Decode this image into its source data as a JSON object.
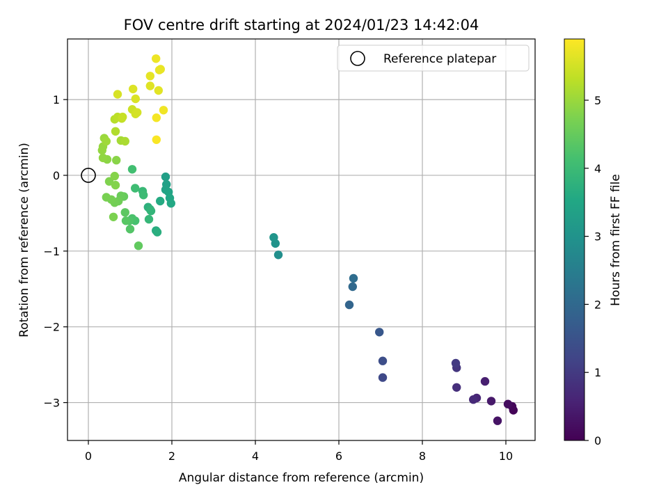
{
  "chart_data": {
    "type": "scatter",
    "title": "FOV centre drift starting at 2024/01/23 14:42:04",
    "xlabel": "Angular distance from reference (arcmin)",
    "ylabel": "Rotation from reference (arcmin)",
    "xlim": [
      -0.5,
      10.7
    ],
    "ylim": [
      -3.5,
      1.8
    ],
    "x_ticks": [
      0,
      2,
      4,
      6,
      8,
      10
    ],
    "y_ticks": [
      1,
      0,
      -1,
      -2,
      -3
    ],
    "x_tick_labels": [
      "0",
      "2",
      "4",
      "6",
      "8",
      "10"
    ],
    "y_tick_labels": [
      "1",
      "0",
      "−1",
      "−2",
      "−3"
    ],
    "grid": true,
    "legend": {
      "position": "top-right",
      "entries": [
        "Reference platepar"
      ]
    },
    "reference_point": {
      "x": 0,
      "y": 0,
      "marker": "open-circle"
    },
    "colorbar": {
      "label": "Hours from first FF file",
      "range": [
        0,
        5.9
      ],
      "ticks": [
        0,
        1,
        2,
        3,
        4,
        5
      ],
      "tick_labels": [
        "0",
        "1",
        "2",
        "3",
        "4",
        "5"
      ],
      "colormap": "viridis"
    },
    "series": [
      {
        "points": [
          {
            "x": 10.18,
            "y": -3.1,
            "t": 0.05
          },
          {
            "x": 10.15,
            "y": -3.05,
            "t": 0.1
          },
          {
            "x": 10.05,
            "y": -3.02,
            "t": 0.2
          },
          {
            "x": 9.8,
            "y": -3.24,
            "t": 0.3
          },
          {
            "x": 9.65,
            "y": -2.98,
            "t": 0.4
          },
          {
            "x": 9.5,
            "y": -2.72,
            "t": 0.5
          },
          {
            "x": 9.3,
            "y": -2.94,
            "t": 0.6
          },
          {
            "x": 9.22,
            "y": -2.96,
            "t": 0.7
          },
          {
            "x": 8.82,
            "y": -2.8,
            "t": 0.8
          },
          {
            "x": 8.82,
            "y": -2.54,
            "t": 0.9
          },
          {
            "x": 8.8,
            "y": -2.48,
            "t": 1.0
          },
          {
            "x": 7.05,
            "y": -2.67,
            "t": 1.3
          },
          {
            "x": 7.05,
            "y": -2.45,
            "t": 1.4
          },
          {
            "x": 6.97,
            "y": -2.07,
            "t": 1.6
          },
          {
            "x": 6.25,
            "y": -1.71,
            "t": 1.9
          },
          {
            "x": 6.33,
            "y": -1.47,
            "t": 2.0
          },
          {
            "x": 6.35,
            "y": -1.36,
            "t": 2.1
          },
          {
            "x": 4.55,
            "y": -1.05,
            "t": 2.9
          },
          {
            "x": 4.48,
            "y": -0.9,
            "t": 3.0
          },
          {
            "x": 4.44,
            "y": -0.82,
            "t": 3.05
          },
          {
            "x": 1.85,
            "y": -0.02,
            "t": 3.3
          },
          {
            "x": 1.87,
            "y": -0.12,
            "t": 3.35
          },
          {
            "x": 1.85,
            "y": -0.19,
            "t": 3.4
          },
          {
            "x": 1.92,
            "y": -0.22,
            "t": 3.45
          },
          {
            "x": 1.95,
            "y": -0.3,
            "t": 3.5
          },
          {
            "x": 1.98,
            "y": -0.37,
            "t": 3.55
          },
          {
            "x": 1.72,
            "y": -0.34,
            "t": 3.6
          },
          {
            "x": 1.62,
            "y": -0.73,
            "t": 3.65
          },
          {
            "x": 1.65,
            "y": -0.75,
            "t": 3.7
          },
          {
            "x": 1.43,
            "y": -0.42,
            "t": 3.75
          },
          {
            "x": 1.48,
            "y": -0.45,
            "t": 3.8
          },
          {
            "x": 1.5,
            "y": -0.47,
            "t": 3.85
          },
          {
            "x": 1.45,
            "y": -0.58,
            "t": 3.9
          },
          {
            "x": 1.3,
            "y": -0.21,
            "t": 3.95
          },
          {
            "x": 1.32,
            "y": -0.26,
            "t": 4.0
          },
          {
            "x": 1.12,
            "y": -0.17,
            "t": 4.05
          },
          {
            "x": 1.05,
            "y": 0.08,
            "t": 4.1
          },
          {
            "x": 1.12,
            "y": -0.6,
            "t": 4.15
          },
          {
            "x": 1.05,
            "y": -0.57,
            "t": 4.2
          },
          {
            "x": 0.98,
            "y": -0.6,
            "t": 4.25
          },
          {
            "x": 1.0,
            "y": -0.71,
            "t": 4.3
          },
          {
            "x": 0.9,
            "y": -0.6,
            "t": 4.35
          },
          {
            "x": 0.88,
            "y": -0.49,
            "t": 4.4
          },
          {
            "x": 1.2,
            "y": -0.93,
            "t": 4.45
          },
          {
            "x": 0.85,
            "y": -0.28,
            "t": 4.5
          },
          {
            "x": 0.78,
            "y": -0.27,
            "t": 4.55
          },
          {
            "x": 0.72,
            "y": -0.34,
            "t": 4.6
          },
          {
            "x": 0.63,
            "y": -0.36,
            "t": 4.63
          },
          {
            "x": 0.55,
            "y": -0.32,
            "t": 4.66
          },
          {
            "x": 0.43,
            "y": -0.29,
            "t": 4.7
          },
          {
            "x": 0.6,
            "y": -0.55,
            "t": 4.73
          },
          {
            "x": 0.5,
            "y": -0.08,
            "t": 4.76
          },
          {
            "x": 0.65,
            "y": -0.13,
            "t": 4.79
          },
          {
            "x": 0.63,
            "y": -0.01,
            "t": 4.82
          },
          {
            "x": 0.67,
            "y": 0.2,
            "t": 4.85
          },
          {
            "x": 0.45,
            "y": 0.21,
            "t": 4.88
          },
          {
            "x": 0.35,
            "y": 0.23,
            "t": 4.91
          },
          {
            "x": 0.33,
            "y": 0.33,
            "t": 4.94
          },
          {
            "x": 0.35,
            "y": 0.38,
            "t": 4.97
          },
          {
            "x": 0.38,
            "y": 0.49,
            "t": 5.0
          },
          {
            "x": 0.43,
            "y": 0.45,
            "t": 5.05
          },
          {
            "x": 0.78,
            "y": 0.46,
            "t": 5.1
          },
          {
            "x": 0.88,
            "y": 0.45,
            "t": 5.15
          },
          {
            "x": 0.65,
            "y": 0.58,
            "t": 5.2
          },
          {
            "x": 0.63,
            "y": 0.74,
            "t": 5.25
          },
          {
            "x": 0.7,
            "y": 0.77,
            "t": 5.3
          },
          {
            "x": 0.8,
            "y": 0.75,
            "t": 5.35
          },
          {
            "x": 0.82,
            "y": 0.77,
            "t": 5.4
          },
          {
            "x": 1.05,
            "y": 0.87,
            "t": 5.45
          },
          {
            "x": 1.13,
            "y": 0.81,
            "t": 5.5
          },
          {
            "x": 1.17,
            "y": 0.83,
            "t": 5.52
          },
          {
            "x": 0.7,
            "y": 1.07,
            "t": 5.55
          },
          {
            "x": 1.13,
            "y": 1.01,
            "t": 5.58
          },
          {
            "x": 1.07,
            "y": 1.14,
            "t": 5.6
          },
          {
            "x": 1.48,
            "y": 1.18,
            "t": 5.62
          },
          {
            "x": 1.68,
            "y": 1.12,
            "t": 5.65
          },
          {
            "x": 1.48,
            "y": 1.31,
            "t": 5.68
          },
          {
            "x": 1.7,
            "y": 1.39,
            "t": 5.7
          },
          {
            "x": 1.73,
            "y": 1.4,
            "t": 5.72
          },
          {
            "x": 1.62,
            "y": 1.54,
            "t": 5.75
          },
          {
            "x": 1.8,
            "y": 0.86,
            "t": 5.78
          },
          {
            "x": 1.63,
            "y": 0.76,
            "t": 5.82
          },
          {
            "x": 1.63,
            "y": 0.47,
            "t": 5.86
          }
        ]
      }
    ]
  },
  "colors": {
    "axis": "#000000",
    "grid": "#b0b0b0",
    "background": "#ffffff",
    "legend_border": "#cccccc"
  }
}
